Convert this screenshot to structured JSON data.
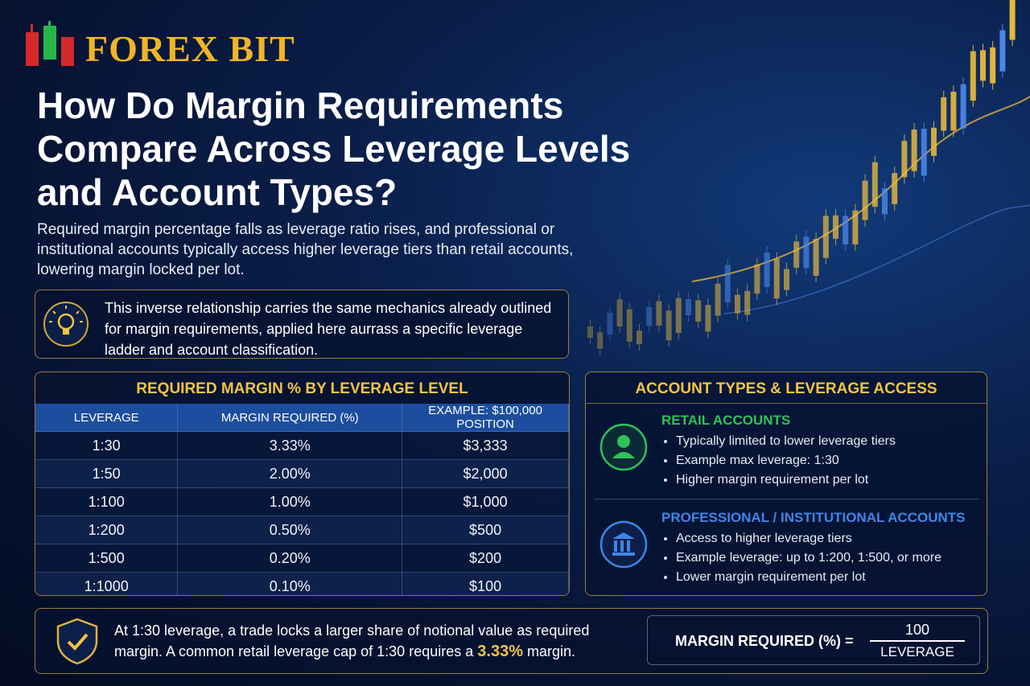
{
  "logo": "FOREX BIT",
  "title": "How Do Margin Requirements Compare Across Leverage Levels and Account Types?",
  "intro": "Required margin percentage falls as leverage ratio rises, and professional or institutional accounts typically access higher leverage tiers than retail accounts, lowering margin locked per lot.",
  "note": "This inverse relationship carries the same mechanics already outlined for margin requirements, applied here aurrass a specific leverage ladder and account classification.",
  "table": {
    "title": "REQUIRED MARGIN % BY LEVERAGE LEVEL",
    "header": [
      "LEVERAGE",
      "MARGIN REQUIRED (%)",
      "EXAMPLE: $100,000 POSITION"
    ],
    "rows": [
      [
        "1:30",
        "3.33%",
        "$3,333"
      ],
      [
        "1:50",
        "2.00%",
        "$2,000"
      ],
      [
        "1:100",
        "1.00%",
        "$1,000"
      ],
      [
        "1:200",
        "0.50%",
        "$500"
      ],
      [
        "1:500",
        "0.20%",
        "$200"
      ],
      [
        "1:1000",
        "0.10%",
        "$100"
      ]
    ]
  },
  "accounts": {
    "title": "ACCOUNT TYPES & LEVERAGE ACCESS",
    "sections": [
      {
        "heading": "RETAIL ACCOUNTS",
        "bullets": [
          "Typically limited to lower leverage tiers",
          "Example max leverage: 1:30",
          "Higher margin requirement per lot"
        ]
      },
      {
        "heading": "PROFESSIONAL / INSTITUTIONAL ACCOUNTS",
        "bullets": [
          "Access to higher leverage tiers",
          "Example leverage: up to 1:200, 1:500, or more",
          "Lower margin requirement per lot"
        ]
      }
    ]
  },
  "footer": {
    "text": "At 1:30 leverage, a trade locks a larger share of notional value as required margin. A common retail leverage cap of 1:30 requires a",
    "highlight": "3.33%",
    "after": "margin."
  },
  "formula": {
    "label": "MARGIN REQUIRED (%) =",
    "numerator": "100",
    "denominator": "LEVERAGE"
  }
}
